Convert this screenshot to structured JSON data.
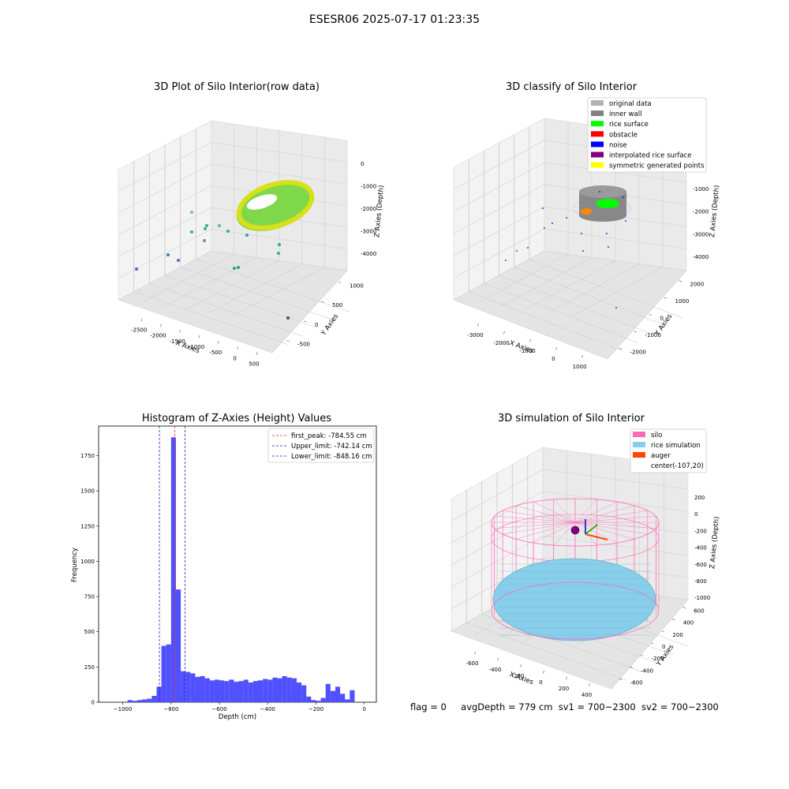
{
  "figure_title": "ESESR06 2025-07-17 01:23:35",
  "footer": {
    "flag": "flag = 0",
    "avg_depth": "avgDepth = 779 cm",
    "sv1": "sv1 = 700~2300",
    "sv2": "sv2 = 700~2300"
  },
  "chart_data": [
    {
      "type": "scatter",
      "title": "3D Plot of Silo Interior(row data)",
      "xlabel": "X Axies",
      "ylabel": "Y Axies",
      "zlabel": "Z Axies (Depth)",
      "x_ticks": [
        "-2500",
        "-2000",
        "-1500",
        "-1000",
        "-500",
        "0",
        "500"
      ],
      "y_ticks": [
        "-500",
        "0",
        "500",
        "1000"
      ],
      "z_ticks": [
        "0",
        "-1000",
        "-2000",
        "-3000",
        "-4000"
      ],
      "colormap": "viridis",
      "series": [
        {
          "values": [
            {
              "x": -2600,
              "y": -500,
              "z": -4200
            },
            {
              "x": -2200,
              "y": -400,
              "z": -3900
            },
            {
              "x": -2050,
              "y": -350,
              "z": -3700
            },
            {
              "x": -1700,
              "y": -200,
              "z": -3300
            },
            {
              "x": -1850,
              "y": -250,
              "z": -2850
            },
            {
              "x": -1750,
              "y": -150,
              "z": -2500
            },
            {
              "x": -1500,
              "y": -50,
              "z": -2900
            },
            {
              "x": -1200,
              "y": 100,
              "z": -2950
            },
            {
              "x": -900,
              "y": 100,
              "z": -3600
            },
            {
              "x": -700,
              "y": 200,
              "z": -3700
            },
            {
              "x": -600,
              "y": 350,
              "z": -3450
            },
            {
              "x": 400,
              "y": -700,
              "z": -4500
            }
          ]
        }
      ],
      "surface": "rice surface depth approx -800"
    },
    {
      "type": "scatter",
      "title": "3D classify of Silo Interior",
      "xlabel": "X Axies",
      "ylabel": "Y Axies",
      "zlabel": "Z Axies (Depth)",
      "x_ticks": [
        "-3000",
        "-2000",
        "-1000",
        "0",
        "1000"
      ],
      "y_ticks": [
        "-2000",
        "-1000",
        "0",
        "1000",
        "2000"
      ],
      "z_ticks": [
        "0",
        "-1000",
        "-2000",
        "-3000",
        "-4000"
      ],
      "legend": [
        {
          "label": "original data",
          "color": "#b3b3b3"
        },
        {
          "label": "inner wall",
          "color": "#808080"
        },
        {
          "label": "rice surface",
          "color": "#00ff00"
        },
        {
          "label": "obstacle",
          "color": "#ff0000"
        },
        {
          "label": "noise",
          "color": "#0000ff"
        },
        {
          "label": "interpolated rice surface",
          "color": "#800080"
        },
        {
          "label": "symmetric generated points",
          "color": "#ffff00"
        }
      ],
      "legend_position": "top-right"
    },
    {
      "type": "bar",
      "title": "Histogram of Z-Axies (Height) Values",
      "xlabel": "Depth (cm)",
      "ylabel": "Frequency",
      "xlim": [
        -1100,
        50
      ],
      "ylim": [
        0,
        1960
      ],
      "x_ticks": [
        -1000,
        -800,
        -600,
        -400,
        -200,
        0
      ],
      "y_ticks": [
        0,
        250,
        500,
        750,
        1000,
        1250,
        1500,
        1750
      ],
      "bin_width": 20,
      "bin_starts": [
        -980,
        -960,
        -940,
        -920,
        -900,
        -880,
        -860,
        -840,
        -820,
        -800,
        -780,
        -760,
        -740,
        -720,
        -700,
        -680,
        -660,
        -640,
        -620,
        -600,
        -580,
        -560,
        -540,
        -520,
        -500,
        -480,
        -460,
        -440,
        -420,
        -400,
        -380,
        -360,
        -340,
        -320,
        -300,
        -280,
        -260,
        -240,
        -220,
        -200,
        -180,
        -160,
        -140,
        -120,
        -100,
        -80,
        -60,
        -40,
        -20
      ],
      "values": [
        15,
        10,
        15,
        20,
        25,
        45,
        110,
        400,
        410,
        1880,
        800,
        220,
        215,
        205,
        180,
        185,
        170,
        155,
        160,
        155,
        150,
        160,
        145,
        150,
        160,
        140,
        150,
        155,
        165,
        160,
        175,
        170,
        185,
        175,
        170,
        140,
        120,
        40,
        15,
        10,
        30,
        130,
        80,
        110,
        60,
        20,
        85,
        0,
        0
      ],
      "color": "#5050ff",
      "lines": [
        {
          "label": "first_peak: -784.55 cm",
          "x": -784.55,
          "color": "#e03030"
        },
        {
          "label": "Upper_limit: -742.14 cm",
          "x": -742.14,
          "color": "#2020c0"
        },
        {
          "label": "Lower_limit: -848.16 cm",
          "x": -848.16,
          "color": "#2020c0"
        }
      ],
      "legend_position": "top-right"
    },
    {
      "type": "scatter",
      "title": "3D simulation of Silo Interior",
      "xlabel": "X Axies",
      "ylabel": "Y Axies",
      "zlabel": "Z Axies (Depth)",
      "x_ticks": [
        "-600",
        "-400",
        "-200",
        "0",
        "200",
        "400"
      ],
      "y_ticks": [
        "-600",
        "-400",
        "-200",
        "0",
        "200",
        "400",
        "600"
      ],
      "z_ticks": [
        "200",
        "0",
        "-200",
        "-400",
        "-600",
        "-800",
        "-1000"
      ],
      "legend": [
        {
          "label": "silo",
          "color": "#ff69b4"
        },
        {
          "label": "rice simulation",
          "color": "#87ceeb"
        },
        {
          "label": "auger",
          "color": "#ff4500"
        },
        {
          "label": "center(-107,20)",
          "color": ""
        }
      ],
      "legend_position": "top-right"
    }
  ]
}
